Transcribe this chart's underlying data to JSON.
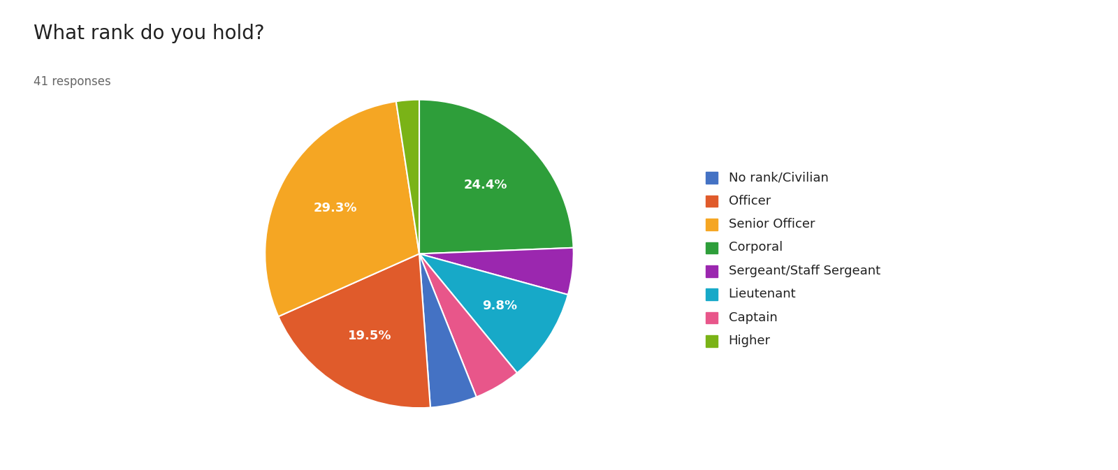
{
  "title": "What rank do you hold?",
  "subtitle": "41 responses",
  "legend_labels": [
    "No rank/Civilian",
    "Officer",
    "Senior Officer",
    "Corporal",
    "Sergeant/Staff Sergeant",
    "Lieutenant",
    "Captain",
    "Higher"
  ],
  "legend_colors": [
    "#4472C4",
    "#E05B2B",
    "#F5A623",
    "#2E9E3A",
    "#9B27AF",
    "#17A9C8",
    "#E8568A",
    "#7AB317"
  ],
  "pie_labels": [
    "Corporal",
    "Sergeant/Staff Sergeant",
    "Lieutenant",
    "Captain",
    "No rank/Civilian",
    "Officer",
    "Senior Officer",
    "Higher"
  ],
  "pie_pcts": [
    24.4,
    4.9,
    9.8,
    4.9,
    4.9,
    19.5,
    29.3,
    2.4
  ],
  "pie_colors": [
    "#2E9E3A",
    "#9B27AF",
    "#17A9C8",
    "#E8568A",
    "#4472C4",
    "#E05B2B",
    "#F5A623",
    "#7AB317"
  ],
  "pie_autopct": [
    "24.4%",
    "",
    "9.8%",
    "",
    "",
    "19.5%",
    "29.3%",
    ""
  ],
  "startangle": 90,
  "title_fontsize": 20,
  "subtitle_fontsize": 12,
  "label_fontsize": 13,
  "legend_fontsize": 13,
  "background_color": "#ffffff",
  "text_color": "#212121",
  "subtitle_color": "#666666"
}
